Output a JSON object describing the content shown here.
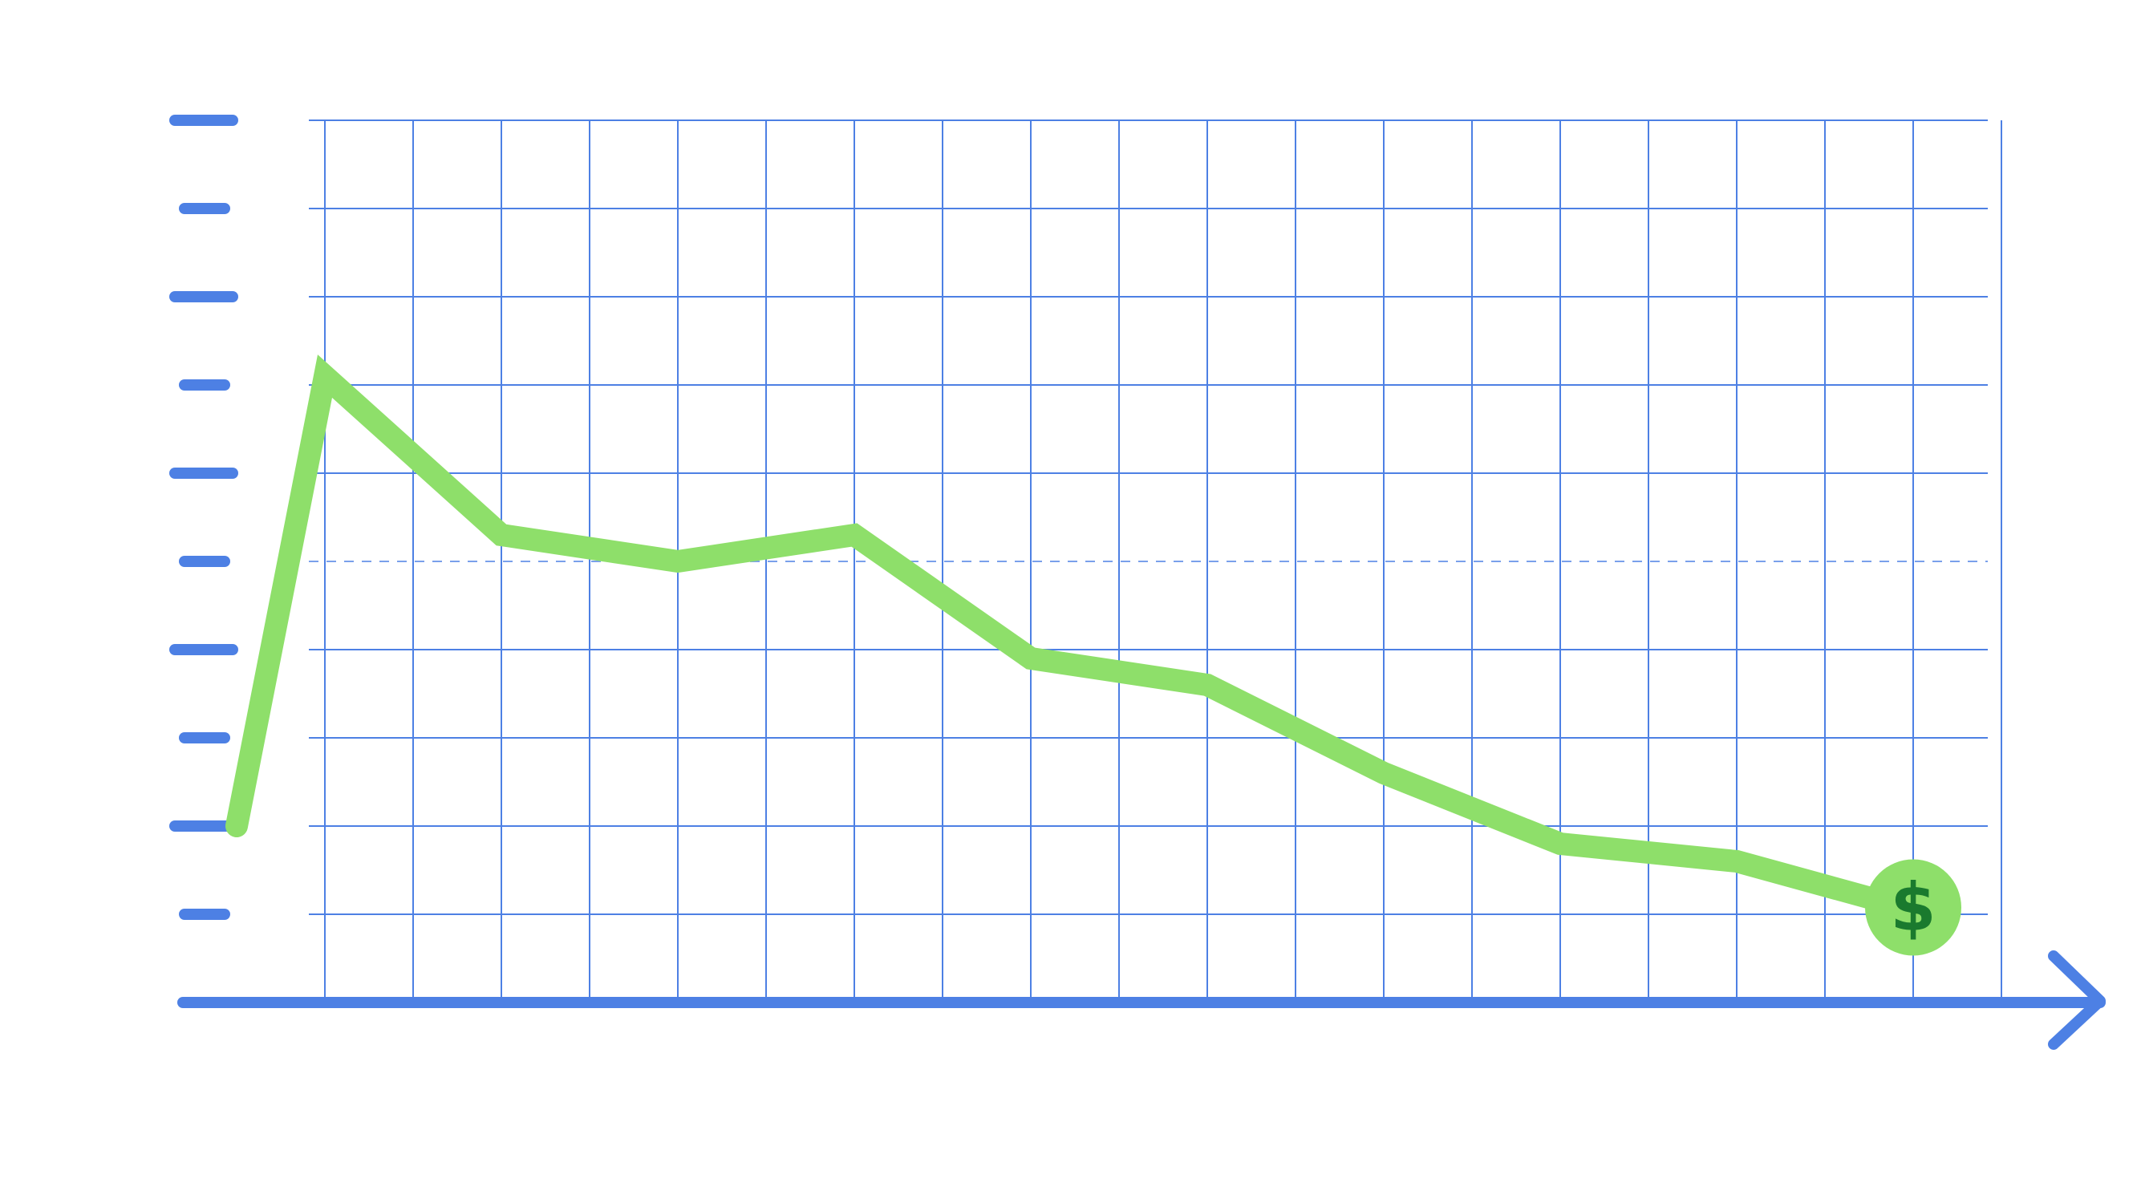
{
  "chart_data": {
    "type": "line",
    "title": "",
    "xlabel": "",
    "ylabel": "",
    "x": [
      0,
      1,
      3,
      5,
      7,
      9,
      11,
      13,
      15,
      17,
      19
    ],
    "xlim": [
      0,
      20
    ],
    "ylim": [
      0,
      10
    ],
    "y_ticks": [
      1,
      2,
      3,
      4,
      5,
      6,
      7,
      8,
      9,
      10
    ],
    "grid": true,
    "reference_line": 5,
    "legend": "none",
    "series": [
      {
        "values": [
          2,
          7.1,
          5.3,
          5.0,
          5.3,
          3.9,
          3.6,
          2.6,
          1.8,
          1.6,
          1.05
        ],
        "color": "#8edf6a",
        "end_marker_icon": "dollar-coin-icon",
        "end_marker_label": "$"
      }
    ]
  },
  "colors": {
    "axis": "#4d80e4",
    "grid": "#4d80e4",
    "line": "#8edf6a",
    "marker_fill": "#8edf6a",
    "marker_text": "#1a7a2e"
  }
}
